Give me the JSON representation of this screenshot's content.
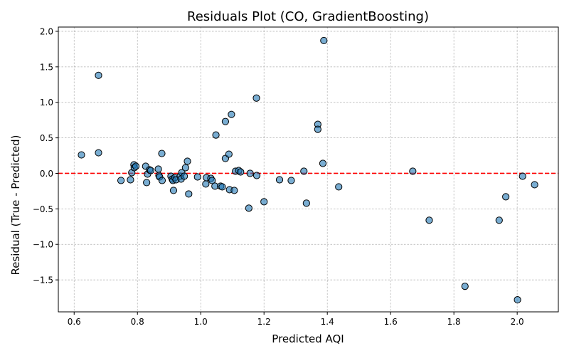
{
  "chart_data": {
    "type": "scatter",
    "title": "Residuals Plot (CO, GradientBoosting)",
    "xlabel": "Predicted AQI",
    "ylabel": "Residual (True - Predicted)",
    "xlim": [
      0.55,
      2.13
    ],
    "ylim": [
      -1.95,
      2.06
    ],
    "x_ticks": [
      0.6,
      0.8,
      1.0,
      1.2,
      1.4,
      1.6,
      1.8,
      2.0
    ],
    "x_tick_labels": [
      "0.6",
      "0.8",
      "1.0",
      "1.2",
      "1.4",
      "1.6",
      "1.8",
      "2.0"
    ],
    "y_ticks": [
      -1.5,
      -1.0,
      -0.5,
      0.0,
      0.5,
      1.0,
      1.5,
      2.0
    ],
    "y_tick_labels": [
      "−1.5",
      "−1.0",
      "−0.5",
      "0.0",
      "0.5",
      "1.0",
      "1.5",
      "2.0"
    ],
    "grid": true,
    "reference_line": {
      "y": 0,
      "color": "#ff0000",
      "style": "dashed"
    },
    "marker_color": "#1f77b4",
    "marker_edge_color": "#000000",
    "points": [
      {
        "x": 0.623,
        "y": 0.26
      },
      {
        "x": 0.677,
        "y": 0.29
      },
      {
        "x": 0.677,
        "y": 1.38
      },
      {
        "x": 0.748,
        "y": -0.1
      },
      {
        "x": 0.778,
        "y": -0.09
      },
      {
        "x": 0.782,
        "y": 0.01
      },
      {
        "x": 0.789,
        "y": 0.12
      },
      {
        "x": 0.79,
        "y": 0.08
      },
      {
        "x": 0.795,
        "y": 0.1
      },
      {
        "x": 0.826,
        "y": 0.1
      },
      {
        "x": 0.829,
        "y": -0.13
      },
      {
        "x": 0.832,
        "y": -0.01
      },
      {
        "x": 0.838,
        "y": 0.05
      },
      {
        "x": 0.842,
        "y": 0.04
      },
      {
        "x": 0.866,
        "y": 0.06
      },
      {
        "x": 0.868,
        "y": -0.03
      },
      {
        "x": 0.87,
        "y": -0.05
      },
      {
        "x": 0.877,
        "y": 0.28
      },
      {
        "x": 0.878,
        "y": -0.1
      },
      {
        "x": 0.906,
        "y": -0.04
      },
      {
        "x": 0.91,
        "y": -0.08
      },
      {
        "x": 0.912,
        "y": -0.1
      },
      {
        "x": 0.914,
        "y": -0.24
      },
      {
        "x": 0.918,
        "y": -0.06
      },
      {
        "x": 0.922,
        "y": -0.09
      },
      {
        "x": 0.935,
        "y": -0.04
      },
      {
        "x": 0.938,
        "y": -0.08
      },
      {
        "x": 0.94,
        "y": 0.01
      },
      {
        "x": 0.948,
        "y": -0.04
      },
      {
        "x": 0.952,
        "y": 0.08
      },
      {
        "x": 0.958,
        "y": 0.17
      },
      {
        "x": 0.962,
        "y": -0.29
      },
      {
        "x": 0.99,
        "y": -0.05
      },
      {
        "x": 1.016,
        "y": -0.15
      },
      {
        "x": 1.018,
        "y": -0.06
      },
      {
        "x": 1.032,
        "y": -0.07
      },
      {
        "x": 1.036,
        "y": -0.1
      },
      {
        "x": 1.045,
        "y": -0.18
      },
      {
        "x": 1.048,
        "y": 0.54
      },
      {
        "x": 1.063,
        "y": -0.18
      },
      {
        "x": 1.068,
        "y": -0.19
      },
      {
        "x": 1.078,
        "y": 0.73
      },
      {
        "x": 1.078,
        "y": 0.21
      },
      {
        "x": 1.089,
        "y": 0.27
      },
      {
        "x": 1.091,
        "y": -0.23
      },
      {
        "x": 1.097,
        "y": 0.83
      },
      {
        "x": 1.106,
        "y": -0.24
      },
      {
        "x": 1.11,
        "y": 0.03
      },
      {
        "x": 1.12,
        "y": 0.04
      },
      {
        "x": 1.126,
        "y": 0.02
      },
      {
        "x": 1.152,
        "y": -0.49
      },
      {
        "x": 1.156,
        "y": 0.0
      },
      {
        "x": 1.176,
        "y": 1.06
      },
      {
        "x": 1.177,
        "y": -0.03
      },
      {
        "x": 1.2,
        "y": -0.4
      },
      {
        "x": 1.249,
        "y": -0.09
      },
      {
        "x": 1.286,
        "y": -0.1
      },
      {
        "x": 1.326,
        "y": 0.03
      },
      {
        "x": 1.334,
        "y": -0.42
      },
      {
        "x": 1.37,
        "y": 0.69
      },
      {
        "x": 1.37,
        "y": 0.62
      },
      {
        "x": 1.386,
        "y": 0.14
      },
      {
        "x": 1.389,
        "y": 1.87
      },
      {
        "x": 1.436,
        "y": -0.19
      },
      {
        "x": 1.67,
        "y": 0.03
      },
      {
        "x": 1.722,
        "y": -0.66
      },
      {
        "x": 1.835,
        "y": -1.59
      },
      {
        "x": 1.943,
        "y": -0.66
      },
      {
        "x": 1.964,
        "y": -0.33
      },
      {
        "x": 2.001,
        "y": -1.78
      },
      {
        "x": 2.017,
        "y": -0.04
      },
      {
        "x": 2.055,
        "y": -0.16
      }
    ]
  }
}
